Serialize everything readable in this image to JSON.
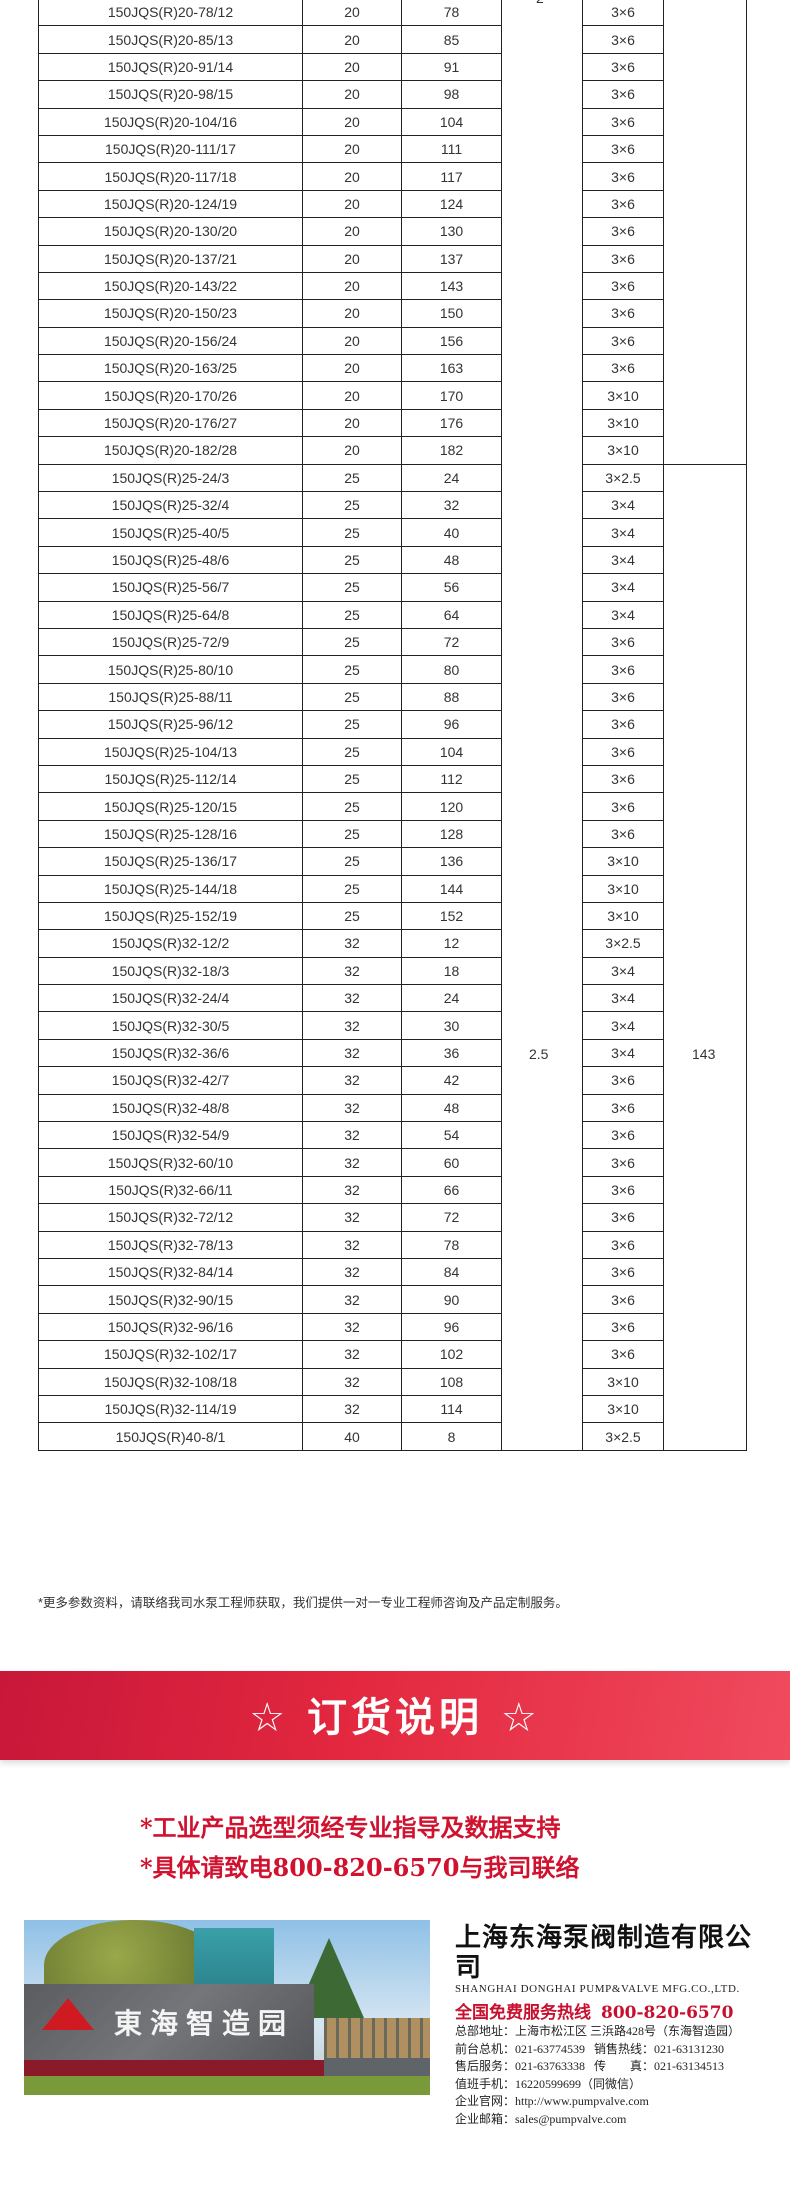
{
  "table": {
    "partial_top_label": "2",
    "merged_power": "2.5",
    "merged_outlet": "143",
    "rows": [
      [
        "150JQS(R)20-78/12",
        "20",
        "78",
        "3×6"
      ],
      [
        "150JQS(R)20-85/13",
        "20",
        "85",
        "3×6"
      ],
      [
        "150JQS(R)20-91/14",
        "20",
        "91",
        "3×6"
      ],
      [
        "150JQS(R)20-98/15",
        "20",
        "98",
        "3×6"
      ],
      [
        "150JQS(R)20-104/16",
        "20",
        "104",
        "3×6"
      ],
      [
        "150JQS(R)20-111/17",
        "20",
        "111",
        "3×6"
      ],
      [
        "150JQS(R)20-117/18",
        "20",
        "117",
        "3×6"
      ],
      [
        "150JQS(R)20-124/19",
        "20",
        "124",
        "3×6"
      ],
      [
        "150JQS(R)20-130/20",
        "20",
        "130",
        "3×6"
      ],
      [
        "150JQS(R)20-137/21",
        "20",
        "137",
        "3×6"
      ],
      [
        "150JQS(R)20-143/22",
        "20",
        "143",
        "3×6"
      ],
      [
        "150JQS(R)20-150/23",
        "20",
        "150",
        "3×6"
      ],
      [
        "150JQS(R)20-156/24",
        "20",
        "156",
        "3×6"
      ],
      [
        "150JQS(R)20-163/25",
        "20",
        "163",
        "3×6"
      ],
      [
        "150JQS(R)20-170/26",
        "20",
        "170",
        "3×10"
      ],
      [
        "150JQS(R)20-176/27",
        "20",
        "176",
        "3×10"
      ],
      [
        "150JQS(R)20-182/28",
        "20",
        "182",
        "3×10"
      ],
      [
        "150JQS(R)25-24/3",
        "25",
        "24",
        "3×2.5"
      ],
      [
        "150JQS(R)25-32/4",
        "25",
        "32",
        "3×4"
      ],
      [
        "150JQS(R)25-40/5",
        "25",
        "40",
        "3×4"
      ],
      [
        "150JQS(R)25-48/6",
        "25",
        "48",
        "3×4"
      ],
      [
        "150JQS(R)25-56/7",
        "25",
        "56",
        "3×4"
      ],
      [
        "150JQS(R)25-64/8",
        "25",
        "64",
        "3×4"
      ],
      [
        "150JQS(R)25-72/9",
        "25",
        "72",
        "3×6"
      ],
      [
        "150JQS(R)25-80/10",
        "25",
        "80",
        "3×6"
      ],
      [
        "150JQS(R)25-88/11",
        "25",
        "88",
        "3×6"
      ],
      [
        "150JQS(R)25-96/12",
        "25",
        "96",
        "3×6"
      ],
      [
        "150JQS(R)25-104/13",
        "25",
        "104",
        "3×6"
      ],
      [
        "150JQS(R)25-112/14",
        "25",
        "112",
        "3×6"
      ],
      [
        "150JQS(R)25-120/15",
        "25",
        "120",
        "3×6"
      ],
      [
        "150JQS(R)25-128/16",
        "25",
        "128",
        "3×6"
      ],
      [
        "150JQS(R)25-136/17",
        "25",
        "136",
        "3×10"
      ],
      [
        "150JQS(R)25-144/18",
        "25",
        "144",
        "3×10"
      ],
      [
        "150JQS(R)25-152/19",
        "25",
        "152",
        "3×10"
      ],
      [
        "150JQS(R)32-12/2",
        "32",
        "12",
        "3×2.5"
      ],
      [
        "150JQS(R)32-18/3",
        "32",
        "18",
        "3×4"
      ],
      [
        "150JQS(R)32-24/4",
        "32",
        "24",
        "3×4"
      ],
      [
        "150JQS(R)32-30/5",
        "32",
        "30",
        "3×4"
      ],
      [
        "150JQS(R)32-36/6",
        "32",
        "36",
        "3×4"
      ],
      [
        "150JQS(R)32-42/7",
        "32",
        "42",
        "3×6"
      ],
      [
        "150JQS(R)32-48/8",
        "32",
        "48",
        "3×6"
      ],
      [
        "150JQS(R)32-54/9",
        "32",
        "54",
        "3×6"
      ],
      [
        "150JQS(R)32-60/10",
        "32",
        "60",
        "3×6"
      ],
      [
        "150JQS(R)32-66/11",
        "32",
        "66",
        "3×6"
      ],
      [
        "150JQS(R)32-72/12",
        "32",
        "72",
        "3×6"
      ],
      [
        "150JQS(R)32-78/13",
        "32",
        "78",
        "3×6"
      ],
      [
        "150JQS(R)32-84/14",
        "32",
        "84",
        "3×6"
      ],
      [
        "150JQS(R)32-90/15",
        "32",
        "90",
        "3×6"
      ],
      [
        "150JQS(R)32-96/16",
        "32",
        "96",
        "3×6"
      ],
      [
        "150JQS(R)32-102/17",
        "32",
        "102",
        "3×6"
      ],
      [
        "150JQS(R)32-108/18",
        "32",
        "108",
        "3×10"
      ],
      [
        "150JQS(R)32-114/19",
        "32",
        "114",
        "3×10"
      ],
      [
        "150JQS(R)40-8/1",
        "40",
        "8",
        "3×2.5"
      ]
    ]
  },
  "note": "*更多参数资料，请联络我司水泵工程师获取，我们提供一对一专业工程师咨询及产品定制服务。",
  "banner": {
    "title": "☆ 订货说明 ☆",
    "color": "#e3283f"
  },
  "order_notes": [
    "*工业产品选型须经专业指导及数据支持",
    "*具体请致电800-820-6570与我司联络"
  ],
  "photo": {
    "sign_text": "東海智造园"
  },
  "company": {
    "name_cn": "上海东海泵阀制造有限公司",
    "name_en": "SHANGHAI DONGHAI PUMP&VALVE MFG.CO.,LTD.",
    "hotline_label": "全国免费服务热线",
    "hotline": "800-820-6570",
    "address": "总部地址：上海市松江区 三浜路428号（东海智造园）",
    "reception": "前台总机：021-63774539",
    "sales": "销售热线：021-63131230",
    "after_sales": "售后服务：021-63763338",
    "fax": "传　　真：021-63134513",
    "mobile": "值班手机：16220599699（同微信）",
    "website": "企业官网：http://www.pumpvalve.com",
    "email": "企业邮箱：sales@pumpvalve.com"
  }
}
